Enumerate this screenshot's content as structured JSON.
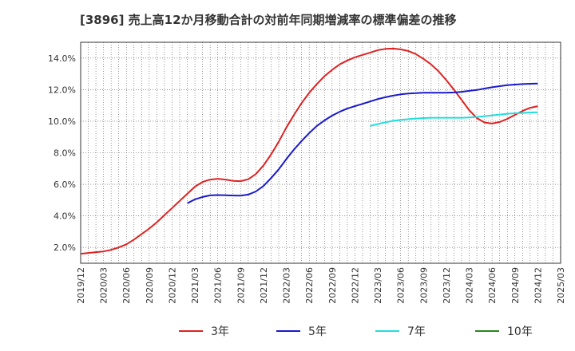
{
  "chart_data": {
    "type": "line",
    "title": "[3896]  売上高12か月移動合計の対前年同期増減率の標準偏差の推移",
    "xlabel": "",
    "ylabel": "",
    "ylim": [
      1.0,
      15.0
    ],
    "yticks": [
      2.0,
      4.0,
      6.0,
      8.0,
      10.0,
      12.0,
      14.0
    ],
    "ytick_labels": [
      "2.0%",
      "4.0%",
      "6.0%",
      "8.0%",
      "10.0%",
      "12.0%",
      "14.0%"
    ],
    "xlim": [
      "2019/12",
      "2025/03"
    ],
    "xtick_labels": [
      "2019/12",
      "2020/03",
      "2020/06",
      "2020/09",
      "2020/12",
      "2021/03",
      "2021/06",
      "2021/09",
      "2021/12",
      "2022/03",
      "2022/06",
      "2022/09",
      "2022/12",
      "2023/03",
      "2023/06",
      "2023/09",
      "2023/12",
      "2024/03",
      "2024/06",
      "2024/09",
      "2024/12",
      "2025/03"
    ],
    "grid": true,
    "legend_position": "bottom",
    "series": [
      {
        "name": "3年",
        "color": "#dd2222",
        "points": [
          [
            "2019/12",
            1.6
          ],
          [
            "2020/01",
            1.65
          ],
          [
            "2020/02",
            1.7
          ],
          [
            "2020/03",
            1.75
          ],
          [
            "2020/04",
            1.85
          ],
          [
            "2020/05",
            2.0
          ],
          [
            "2020/06",
            2.2
          ],
          [
            "2020/07",
            2.5
          ],
          [
            "2020/08",
            2.85
          ],
          [
            "2020/09",
            3.2
          ],
          [
            "2020/10",
            3.6
          ],
          [
            "2020/11",
            4.05
          ],
          [
            "2020/12",
            4.5
          ],
          [
            "2021/01",
            4.95
          ],
          [
            "2021/02",
            5.4
          ],
          [
            "2021/03",
            5.85
          ],
          [
            "2021/04",
            6.15
          ],
          [
            "2021/05",
            6.3
          ],
          [
            "2021/06",
            6.35
          ],
          [
            "2021/07",
            6.3
          ],
          [
            "2021/08",
            6.22
          ],
          [
            "2021/09",
            6.2
          ],
          [
            "2021/10",
            6.32
          ],
          [
            "2021/11",
            6.65
          ],
          [
            "2021/12",
            7.2
          ],
          [
            "2022/01",
            7.9
          ],
          [
            "2022/02",
            8.7
          ],
          [
            "2022/03",
            9.6
          ],
          [
            "2022/04",
            10.4
          ],
          [
            "2022/05",
            11.15
          ],
          [
            "2022/06",
            11.8
          ],
          [
            "2022/07",
            12.35
          ],
          [
            "2022/08",
            12.85
          ],
          [
            "2022/09",
            13.25
          ],
          [
            "2022/10",
            13.6
          ],
          [
            "2022/11",
            13.85
          ],
          [
            "2022/12",
            14.05
          ],
          [
            "2023/01",
            14.2
          ],
          [
            "2023/02",
            14.35
          ],
          [
            "2023/03",
            14.5
          ],
          [
            "2023/04",
            14.58
          ],
          [
            "2023/05",
            14.6
          ],
          [
            "2023/06",
            14.55
          ],
          [
            "2023/07",
            14.45
          ],
          [
            "2023/08",
            14.25
          ],
          [
            "2023/09",
            13.95
          ],
          [
            "2023/10",
            13.6
          ],
          [
            "2023/11",
            13.15
          ],
          [
            "2023/12",
            12.6
          ],
          [
            "2024/01",
            12.0
          ],
          [
            "2024/02",
            11.35
          ],
          [
            "2024/03",
            10.7
          ],
          [
            "2024/04",
            10.2
          ],
          [
            "2024/05",
            9.92
          ],
          [
            "2024/06",
            9.85
          ],
          [
            "2024/07",
            9.95
          ],
          [
            "2024/08",
            10.15
          ],
          [
            "2024/09",
            10.4
          ],
          [
            "2024/10",
            10.65
          ],
          [
            "2024/11",
            10.85
          ],
          [
            "2024/12",
            10.95
          ]
        ]
      },
      {
        "name": "5年",
        "color": "#1a1acc",
        "points": [
          [
            "2021/02",
            4.8
          ],
          [
            "2021/03",
            5.05
          ],
          [
            "2021/04",
            5.2
          ],
          [
            "2021/05",
            5.3
          ],
          [
            "2021/06",
            5.32
          ],
          [
            "2021/07",
            5.31
          ],
          [
            "2021/08",
            5.29
          ],
          [
            "2021/09",
            5.28
          ],
          [
            "2021/10",
            5.35
          ],
          [
            "2021/11",
            5.55
          ],
          [
            "2021/12",
            5.9
          ],
          [
            "2022/01",
            6.4
          ],
          [
            "2022/02",
            6.95
          ],
          [
            "2022/03",
            7.6
          ],
          [
            "2022/04",
            8.2
          ],
          [
            "2022/05",
            8.75
          ],
          [
            "2022/06",
            9.25
          ],
          [
            "2022/07",
            9.7
          ],
          [
            "2022/08",
            10.05
          ],
          [
            "2022/09",
            10.35
          ],
          [
            "2022/10",
            10.6
          ],
          [
            "2022/11",
            10.8
          ],
          [
            "2022/12",
            10.95
          ],
          [
            "2023/01",
            11.1
          ],
          [
            "2023/02",
            11.25
          ],
          [
            "2023/03",
            11.4
          ],
          [
            "2023/04",
            11.52
          ],
          [
            "2023/05",
            11.62
          ],
          [
            "2023/06",
            11.7
          ],
          [
            "2023/07",
            11.75
          ],
          [
            "2023/08",
            11.78
          ],
          [
            "2023/09",
            11.8
          ],
          [
            "2023/10",
            11.8
          ],
          [
            "2023/11",
            11.8
          ],
          [
            "2023/12",
            11.8
          ],
          [
            "2024/01",
            11.82
          ],
          [
            "2024/02",
            11.86
          ],
          [
            "2024/03",
            11.92
          ],
          [
            "2024/04",
            11.98
          ],
          [
            "2024/05",
            12.07
          ],
          [
            "2024/06",
            12.15
          ],
          [
            "2024/07",
            12.22
          ],
          [
            "2024/08",
            12.28
          ],
          [
            "2024/09",
            12.32
          ],
          [
            "2024/10",
            12.35
          ],
          [
            "2024/11",
            12.37
          ],
          [
            "2024/12",
            12.38
          ]
        ]
      },
      {
        "name": "7年",
        "color": "#22dddd",
        "points": [
          [
            "2023/02",
            9.7
          ],
          [
            "2023/03",
            9.82
          ],
          [
            "2023/04",
            9.93
          ],
          [
            "2023/05",
            10.02
          ],
          [
            "2023/06",
            10.08
          ],
          [
            "2023/07",
            10.13
          ],
          [
            "2023/08",
            10.17
          ],
          [
            "2023/09",
            10.2
          ],
          [
            "2023/10",
            10.22
          ],
          [
            "2023/11",
            10.22
          ],
          [
            "2023/12",
            10.22
          ],
          [
            "2024/01",
            10.22
          ],
          [
            "2024/02",
            10.22
          ],
          [
            "2024/03",
            10.24
          ],
          [
            "2024/04",
            10.27
          ],
          [
            "2024/05",
            10.32
          ],
          [
            "2024/06",
            10.37
          ],
          [
            "2024/07",
            10.42
          ],
          [
            "2024/08",
            10.47
          ],
          [
            "2024/09",
            10.5
          ],
          [
            "2024/10",
            10.52
          ],
          [
            "2024/11",
            10.55
          ],
          [
            "2024/12",
            10.57
          ]
        ]
      },
      {
        "name": "10年",
        "color": "#228822",
        "points": []
      }
    ]
  }
}
